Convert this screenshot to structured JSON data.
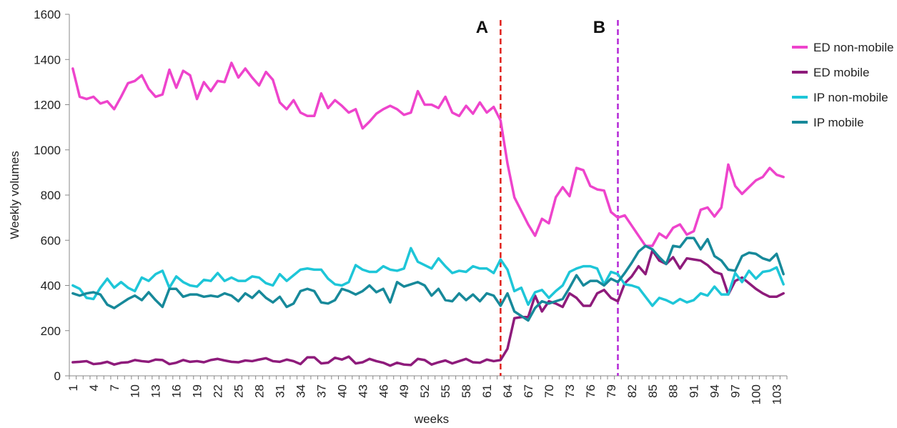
{
  "chart_data": {
    "type": "line",
    "xlabel": "weeks",
    "ylabel": "Weekly volumes",
    "ylim": [
      0,
      1600
    ],
    "y_ticks": [
      0,
      200,
      400,
      600,
      800,
      1000,
      1200,
      1400,
      1600
    ],
    "x_range": [
      1,
      104
    ],
    "x_ticks": [
      1,
      4,
      7,
      10,
      13,
      16,
      19,
      22,
      25,
      28,
      31,
      34,
      37,
      40,
      43,
      46,
      49,
      52,
      55,
      58,
      61,
      64,
      67,
      70,
      73,
      76,
      79,
      82,
      85,
      88,
      91,
      94,
      97,
      100,
      103
    ],
    "grid": false,
    "legend_position": "right",
    "markers": [
      {
        "label": "A",
        "x": 63,
        "color": "#e0201b"
      },
      {
        "label": "B",
        "x": 80,
        "color": "#b427d6"
      }
    ],
    "series": [
      {
        "name": "ED non-mobile",
        "color": "#ee44cc",
        "values": [
          1360,
          1235,
          1225,
          1235,
          1205,
          1215,
          1180,
          1235,
          1295,
          1305,
          1330,
          1270,
          1235,
          1245,
          1355,
          1275,
          1350,
          1330,
          1225,
          1300,
          1260,
          1305,
          1300,
          1385,
          1320,
          1360,
          1320,
          1285,
          1345,
          1310,
          1210,
          1180,
          1220,
          1165,
          1150,
          1150,
          1250,
          1185,
          1220,
          1195,
          1165,
          1180,
          1095,
          1125,
          1160,
          1180,
          1195,
          1180,
          1155,
          1165,
          1260,
          1200,
          1200,
          1185,
          1235,
          1165,
          1150,
          1195,
          1160,
          1210,
          1165,
          1190,
          1130,
          940,
          790,
          730,
          670,
          620,
          695,
          675,
          790,
          835,
          795,
          920,
          910,
          840,
          825,
          820,
          725,
          700,
          710,
          665,
          620,
          575,
          575,
          630,
          610,
          655,
          670,
          625,
          640,
          735,
          745,
          705,
          745,
          935,
          840,
          805,
          835,
          865,
          880,
          920,
          890,
          880
        ]
      },
      {
        "name": "ED mobile",
        "color": "#8e1b7b",
        "values": [
          60,
          62,
          65,
          52,
          55,
          62,
          50,
          58,
          60,
          70,
          65,
          62,
          72,
          70,
          52,
          58,
          70,
          62,
          65,
          60,
          70,
          75,
          68,
          62,
          60,
          68,
          65,
          72,
          78,
          65,
          62,
          72,
          65,
          52,
          82,
          82,
          55,
          58,
          80,
          72,
          85,
          55,
          60,
          75,
          65,
          58,
          45,
          58,
          50,
          48,
          75,
          70,
          50,
          60,
          68,
          55,
          65,
          75,
          60,
          58,
          72,
          65,
          70,
          120,
          255,
          260,
          260,
          355,
          285,
          330,
          320,
          305,
          365,
          345,
          310,
          310,
          365,
          380,
          345,
          330,
          410,
          440,
          485,
          450,
          555,
          510,
          495,
          525,
          475,
          520,
          515,
          510,
          490,
          460,
          450,
          360,
          420,
          435,
          410,
          385,
          365,
          350,
          350,
          365
        ]
      },
      {
        "name": "IP non-mobile",
        "color": "#1ec6d8",
        "values": [
          400,
          385,
          345,
          340,
          390,
          430,
          390,
          415,
          390,
          375,
          435,
          420,
          450,
          465,
          390,
          440,
          415,
          400,
          395,
          425,
          420,
          455,
          420,
          435,
          420,
          420,
          440,
          435,
          410,
          400,
          450,
          420,
          445,
          470,
          475,
          470,
          470,
          430,
          405,
          400,
          415,
          490,
          470,
          460,
          460,
          485,
          470,
          465,
          475,
          565,
          505,
          490,
          475,
          520,
          485,
          455,
          465,
          460,
          485,
          475,
          475,
          455,
          515,
          470,
          375,
          390,
          315,
          370,
          380,
          345,
          375,
          400,
          460,
          475,
          485,
          485,
          475,
          405,
          460,
          450,
          405,
          400,
          390,
          350,
          310,
          345,
          335,
          320,
          340,
          325,
          335,
          365,
          355,
          395,
          360,
          360,
          455,
          415,
          465,
          430,
          460,
          465,
          480,
          405
        ]
      },
      {
        "name": "IP mobile",
        "color": "#17899a",
        "values": [
          365,
          355,
          365,
          370,
          360,
          315,
          300,
          320,
          340,
          355,
          335,
          370,
          335,
          305,
          385,
          385,
          350,
          360,
          360,
          350,
          355,
          350,
          365,
          355,
          330,
          365,
          345,
          375,
          345,
          325,
          350,
          305,
          320,
          375,
          385,
          375,
          325,
          320,
          335,
          385,
          375,
          360,
          375,
          400,
          370,
          385,
          325,
          415,
          395,
          405,
          415,
          400,
          355,
          385,
          335,
          330,
          365,
          335,
          360,
          330,
          365,
          355,
          310,
          365,
          285,
          265,
          245,
          300,
          330,
          320,
          330,
          340,
          390,
          445,
          400,
          420,
          420,
          400,
          430,
          415,
          455,
          500,
          550,
          575,
          560,
          525,
          495,
          575,
          570,
          610,
          610,
          560,
          605,
          530,
          510,
          470,
          465,
          530,
          545,
          540,
          520,
          510,
          540,
          450
        ]
      }
    ]
  }
}
